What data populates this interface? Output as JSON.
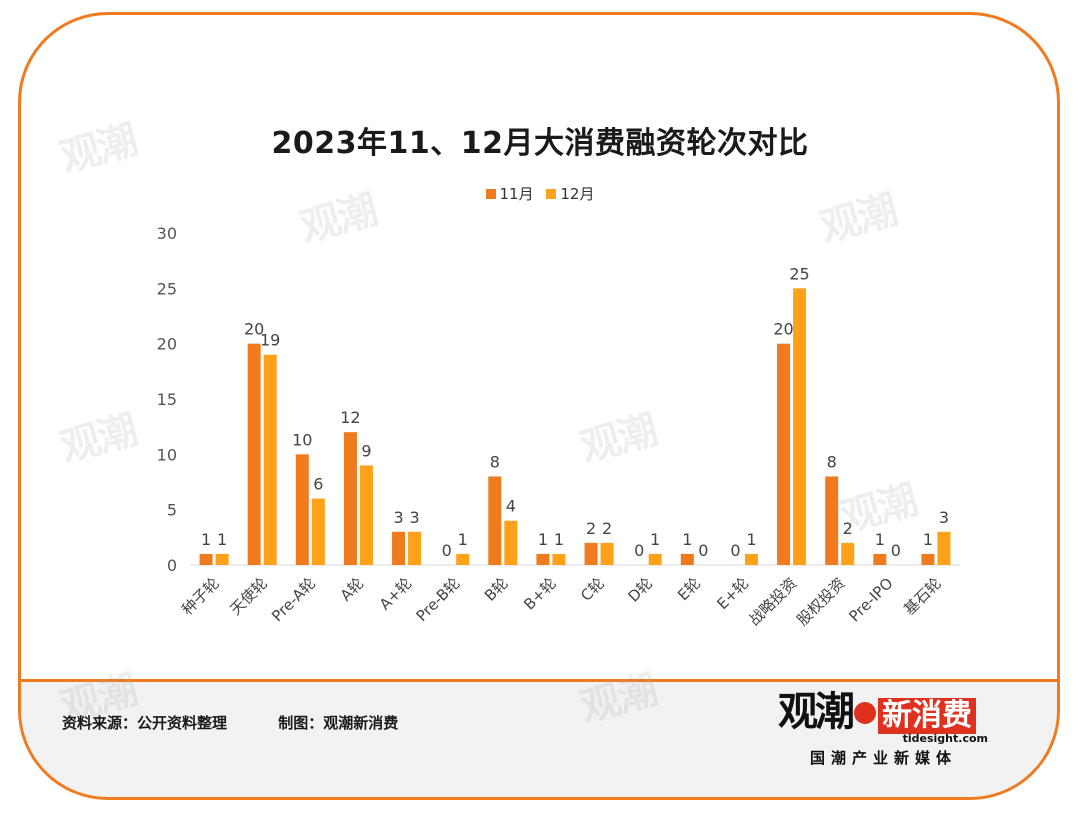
{
  "chart_data": {
    "type": "bar",
    "title": "2023年11、12月大消费融资轮次对比",
    "categories": [
      "种子轮",
      "天使轮",
      "Pre-A轮",
      "A轮",
      "A+轮",
      "Pre-B轮",
      "B轮",
      "B+轮",
      "C轮",
      "D轮",
      "E轮",
      "E+轮",
      "战略投资",
      "股权投资",
      "Pre-IPO",
      "基石轮"
    ],
    "series": [
      {
        "name": "11月",
        "color": "#f07a1e",
        "values": [
          1,
          20,
          10,
          12,
          3,
          0,
          8,
          1,
          2,
          0,
          1,
          0,
          20,
          8,
          1,
          1
        ]
      },
      {
        "name": "12月",
        "color": "#ffa21a",
        "values": [
          1,
          19,
          6,
          9,
          3,
          1,
          4,
          1,
          2,
          1,
          0,
          1,
          25,
          2,
          0,
          3
        ]
      }
    ],
    "ylim": [
      0,
      30
    ],
    "yticks": [
      0,
      5,
      10,
      15,
      20,
      25,
      30
    ],
    "grid": false,
    "legend_position": "top-center"
  },
  "footer": {
    "source": "资料来源：公开资料整理",
    "made_by": "制图：观潮新消费"
  },
  "logo": {
    "brand_a": "观潮",
    "brand_b": "新消费",
    "site": "tidesight.com",
    "tagline": "国潮产业新媒体"
  },
  "colors": {
    "frame": "#f07a1e",
    "nov": "#f07a1e",
    "dec": "#ffa21a"
  }
}
